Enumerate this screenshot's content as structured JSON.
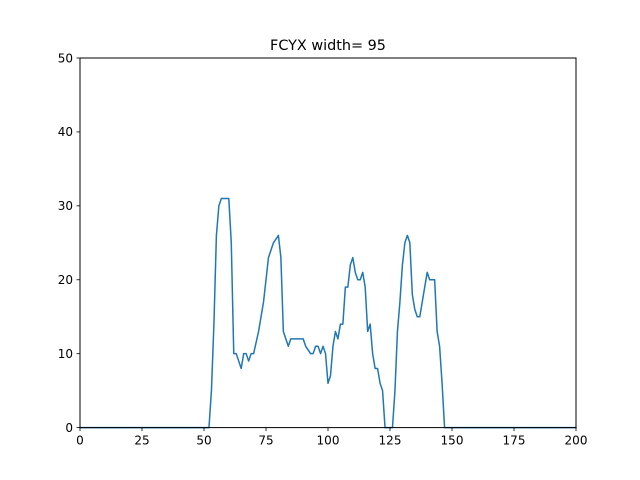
{
  "chart_data": {
    "type": "line",
    "title": "FCYX width= 95",
    "xlabel": "",
    "ylabel": "",
    "xlim": [
      0,
      200
    ],
    "ylim": [
      0,
      50
    ],
    "grid": false,
    "x_ticks": [
      0,
      25,
      50,
      75,
      100,
      125,
      150,
      175,
      200
    ],
    "y_ticks": [
      0,
      10,
      20,
      30,
      40,
      50
    ],
    "series": [
      {
        "color": "#1f77b4",
        "x": [
          0,
          50,
          52,
          53,
          54,
          55,
          56,
          57,
          58,
          59,
          60,
          61,
          62,
          63,
          64,
          65,
          66,
          67,
          68,
          69,
          70,
          72,
          74,
          76,
          78,
          80,
          81,
          82,
          84,
          85,
          86,
          88,
          90,
          91,
          93,
          94,
          95,
          96,
          97,
          98,
          99,
          100,
          101,
          102,
          103,
          104,
          105,
          106,
          107,
          108,
          109,
          110,
          111,
          112,
          113,
          114,
          115,
          116,
          117,
          118,
          119,
          120,
          121,
          122,
          123,
          124,
          125,
          126,
          127,
          128,
          129,
          130,
          131,
          132,
          133,
          134,
          135,
          136,
          137,
          138,
          139,
          140,
          141,
          142,
          143,
          144,
          145,
          146,
          147,
          148,
          200
        ],
        "values": [
          0,
          0,
          0,
          5,
          14,
          26,
          30,
          31,
          31,
          31,
          31,
          25,
          10,
          10,
          9,
          8,
          10,
          10,
          9,
          10,
          10,
          13,
          17,
          23,
          25,
          26,
          23,
          13,
          11,
          12,
          12,
          12,
          12,
          11,
          10,
          10,
          11,
          11,
          10,
          11,
          10,
          6,
          7,
          11,
          13,
          12,
          14,
          14,
          19,
          19,
          22,
          23,
          21,
          20,
          20,
          21,
          19,
          13,
          14,
          10,
          8,
          8,
          6,
          5,
          0,
          0,
          0,
          0,
          5,
          13,
          17,
          22,
          25,
          26,
          25,
          18,
          16,
          15,
          15,
          17,
          19,
          21,
          20,
          20,
          20,
          13,
          11,
          6,
          0,
          0,
          0
        ]
      }
    ]
  }
}
